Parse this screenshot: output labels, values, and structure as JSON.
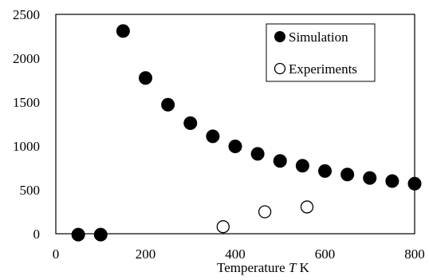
{
  "chart_data": {
    "type": "scatter",
    "xlabel_prefix": "Temperature ",
    "xlabel_var": "T",
    "xlabel_unit": " K",
    "ylabel": "",
    "xlim": [
      0,
      800
    ],
    "ylim": [
      0,
      2500
    ],
    "x_ticks": [
      0,
      200,
      400,
      600,
      800
    ],
    "y_ticks": [
      0,
      500,
      1000,
      1500,
      2000,
      2500
    ],
    "grid": false,
    "legend_position": "top-right",
    "series": [
      {
        "name": "Simulation",
        "marker": "filled-circle",
        "color": "#000000",
        "points": [
          [
            50,
            -10
          ],
          [
            100,
            -10
          ],
          [
            150,
            2310
          ],
          [
            200,
            1775
          ],
          [
            250,
            1470
          ],
          [
            300,
            1260
          ],
          [
            350,
            1110
          ],
          [
            400,
            995
          ],
          [
            450,
            910
          ],
          [
            500,
            830
          ],
          [
            550,
            775
          ],
          [
            600,
            715
          ],
          [
            650,
            675
          ],
          [
            700,
            635
          ],
          [
            750,
            600
          ],
          [
            800,
            570
          ]
        ]
      },
      {
        "name": "Experiments",
        "marker": "open-circle",
        "color": "#000000",
        "points": [
          [
            373,
            80
          ],
          [
            466,
            250
          ],
          [
            560,
            305
          ]
        ]
      }
    ]
  }
}
